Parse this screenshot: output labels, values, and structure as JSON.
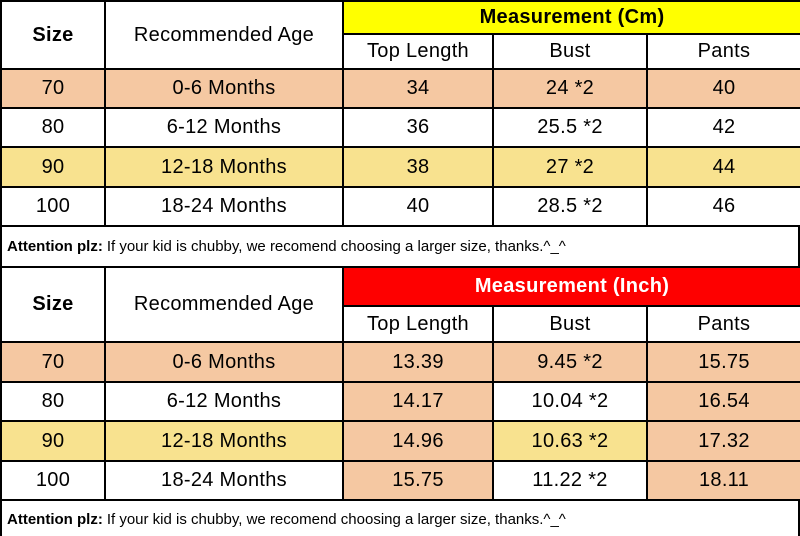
{
  "colors": {
    "row_peach": "#F5C8A2",
    "row_yellow": "#F8E28F",
    "header_cm_background": "#FFFF00",
    "header_inch_background": "#FE0000",
    "header_inch_text": "#FFFFFF",
    "border": "#000000"
  },
  "tables": [
    {
      "measurement_label": "Measurement (Cm)",
      "size_label": "Size",
      "age_label": "Recommended Age",
      "columns": [
        "Top Length",
        "Bust",
        "Pants"
      ],
      "rows": [
        {
          "size": "70",
          "age": "0-6 Months",
          "top_length": "34",
          "bust": "24 *2",
          "pants": "40"
        },
        {
          "size": "80",
          "age": "6-12 Months",
          "top_length": "36",
          "bust": "25.5 *2",
          "pants": "42"
        },
        {
          "size": "90",
          "age": "12-18 Months",
          "top_length": "38",
          "bust": "27 *2",
          "pants": "44"
        },
        {
          "size": "100",
          "age": "18-24 Months",
          "top_length": "40",
          "bust": "28.5 *2",
          "pants": "46"
        }
      ],
      "attention_bold": "Attention plz:",
      "attention_text": "If your kid is chubby, we recomend choosing a larger size, thanks.^_^"
    },
    {
      "measurement_label": "Measurement (Inch)",
      "size_label": "Size",
      "age_label": "Recommended Age",
      "columns": [
        "Top Length",
        "Bust",
        "Pants"
      ],
      "rows": [
        {
          "size": "70",
          "age": "0-6 Months",
          "top_length": "13.39",
          "bust": "9.45 *2",
          "pants": "15.75"
        },
        {
          "size": "80",
          "age": "6-12 Months",
          "top_length": "14.17",
          "bust": "10.04 *2",
          "pants": "16.54"
        },
        {
          "size": "90",
          "age": "12-18 Months",
          "top_length": "14.96",
          "bust": "10.63 *2",
          "pants": "17.32"
        },
        {
          "size": "100",
          "age": "18-24 Months",
          "top_length": "15.75",
          "bust": "11.22 *2",
          "pants": "18.11"
        }
      ],
      "attention_bold": "Attention plz:",
      "attention_text": "If your kid is chubby, we recomend choosing a larger size, thanks.^_^"
    }
  ]
}
